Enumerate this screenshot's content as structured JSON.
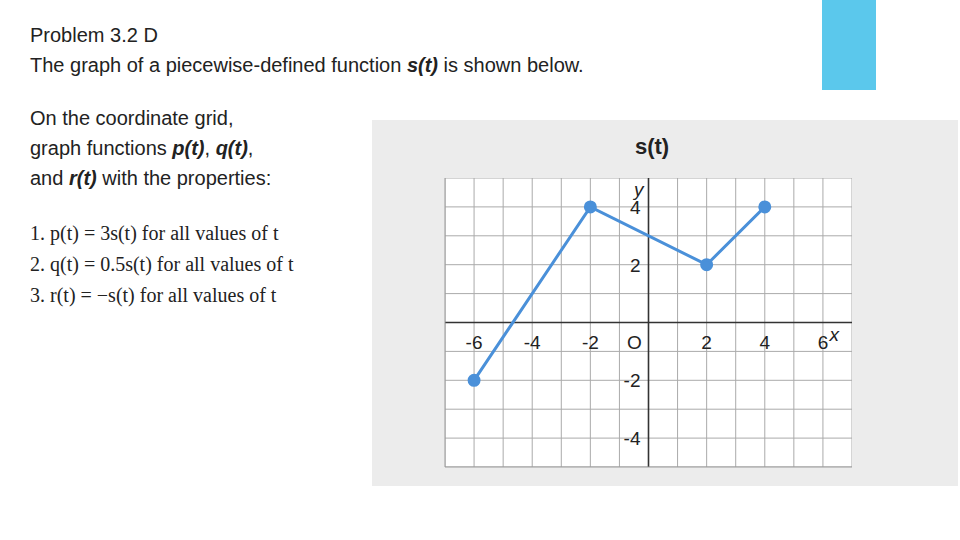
{
  "chart_data": {
    "type": "line",
    "title": "s(t)",
    "x": [
      -6,
      -2,
      2,
      4
    ],
    "values": [
      -2,
      4,
      2,
      4
    ],
    "color": "#4a90d9",
    "marker": "circle",
    "xlim": [
      -7,
      7
    ],
    "ylim": [
      -5,
      5
    ],
    "xticks": [
      -6,
      -4,
      -2,
      {
        "value": 0,
        "label": "O"
      },
      2,
      4,
      6
    ],
    "yticks": [
      -4,
      -2,
      2,
      4
    ],
    "grid": true,
    "xlabel": "x",
    "ylabel": "y"
  },
  "slide": {
    "heading": "Problem 3.2 D",
    "intro": "The graph of a piecewise-defined function s(t) is shown below.",
    "instruction_lines": [
      "On the coordinate grid,",
      "graph functions p(t), q(t),",
      "and r(t) with the properties:"
    ],
    "items": [
      "1. p(t) = 3s(t) for all values of t",
      "2. q(t) = 0.5s(t) for all values of t",
      "3. r(t) = −s(t) for all values of t"
    ]
  }
}
